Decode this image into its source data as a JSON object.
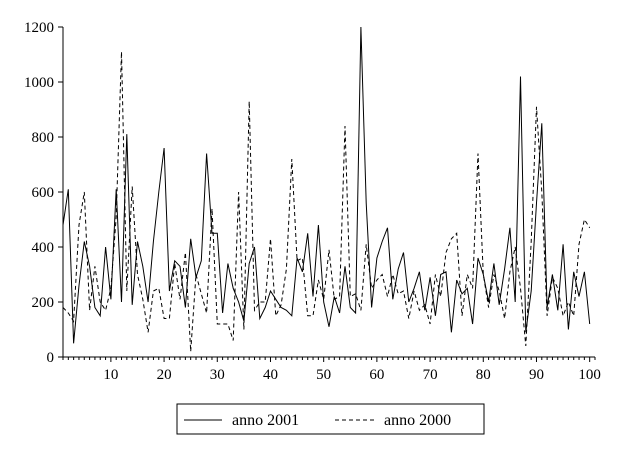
{
  "chart_data": {
    "type": "line",
    "title": "",
    "xlabel": "",
    "ylabel": "",
    "xlim": [
      1,
      101
    ],
    "ylim": [
      0,
      1200
    ],
    "x_ticks": [
      10,
      20,
      30,
      40,
      50,
      60,
      70,
      80,
      90,
      100
    ],
    "y_ticks": [
      0,
      200,
      400,
      600,
      800,
      1000,
      1200
    ],
    "x_tick_labels": [
      "10",
      "20",
      "30",
      "40",
      "50",
      "60",
      "70",
      "80",
      "90",
      "100"
    ],
    "y_tick_labels": [
      "0",
      "200",
      "400",
      "600",
      "800",
      "1000",
      "1200"
    ],
    "grid": false,
    "legend_position": "bottom",
    "series": [
      {
        "name": "anno 2001",
        "style": "solid",
        "color": "#000000",
        "x": [
          1,
          2,
          3,
          4,
          5,
          6,
          7,
          8,
          9,
          10,
          11,
          12,
          13,
          14,
          15,
          16,
          17,
          18,
          19,
          20,
          21,
          22,
          23,
          24,
          25,
          26,
          27,
          28,
          29,
          30,
          31,
          32,
          33,
          34,
          35,
          36,
          37,
          38,
          39,
          40,
          41,
          42,
          43,
          44,
          45,
          46,
          47,
          48,
          49,
          50,
          51,
          52,
          53,
          54,
          55,
          56,
          57,
          58,
          59,
          60,
          61,
          62,
          63,
          64,
          65,
          66,
          67,
          68,
          69,
          70,
          71,
          72,
          73,
          74,
          75,
          76,
          77,
          78,
          79,
          80,
          81,
          82,
          83,
          84,
          85,
          86,
          87,
          88,
          89,
          90,
          91,
          92,
          93,
          94,
          95,
          96,
          97,
          98,
          99,
          100
        ],
        "values": [
          480,
          610,
          50,
          260,
          420,
          330,
          180,
          150,
          400,
          210,
          610,
          200,
          810,
          190,
          420,
          330,
          200,
          420,
          600,
          760,
          240,
          350,
          330,
          180,
          430,
          290,
          350,
          740,
          450,
          450,
          160,
          340,
          250,
          200,
          130,
          340,
          400,
          140,
          180,
          240,
          210,
          180,
          170,
          150,
          360,
          310,
          450,
          220,
          480,
          200,
          110,
          220,
          160,
          330,
          180,
          160,
          1200,
          560,
          180,
          360,
          420,
          470,
          210,
          320,
          380,
          200,
          250,
          310,
          170,
          290,
          150,
          300,
          310,
          90,
          280,
          230,
          250,
          120,
          360,
          300,
          200,
          340,
          190,
          320,
          470,
          200,
          1020,
          90,
          240,
          560,
          850,
          180,
          300,
          170,
          410,
          100,
          310,
          220,
          310,
          120
        ]
      },
      {
        "name": "anno 2000",
        "style": "dashed",
        "color": "#000000",
        "x": [
          1,
          2,
          3,
          4,
          5,
          6,
          7,
          8,
          9,
          10,
          11,
          12,
          13,
          14,
          15,
          16,
          17,
          18,
          19,
          20,
          21,
          22,
          23,
          24,
          25,
          26,
          27,
          28,
          29,
          30,
          31,
          32,
          33,
          34,
          35,
          36,
          37,
          38,
          39,
          40,
          41,
          42,
          43,
          44,
          45,
          46,
          47,
          48,
          49,
          50,
          51,
          52,
          53,
          54,
          55,
          56,
          57,
          58,
          59,
          60,
          61,
          62,
          63,
          64,
          65,
          66,
          67,
          68,
          69,
          70,
          71,
          72,
          73,
          74,
          75,
          76,
          77,
          78,
          79,
          80,
          81,
          82,
          83,
          84,
          85,
          86,
          87,
          88,
          89,
          90,
          91,
          92,
          93,
          94,
          95,
          96,
          97,
          98,
          99,
          100
        ],
        "values": [
          180,
          160,
          130,
          480,
          600,
          170,
          330,
          200,
          170,
          250,
          510,
          1110,
          240,
          620,
          300,
          210,
          90,
          240,
          250,
          140,
          140,
          340,
          210,
          380,
          20,
          300,
          230,
          160,
          540,
          120,
          120,
          120,
          60,
          600,
          100,
          930,
          170,
          200,
          200,
          430,
          150,
          190,
          320,
          720,
          350,
          360,
          150,
          150,
          280,
          210,
          390,
          210,
          220,
          840,
          220,
          230,
          170,
          410,
          250,
          280,
          300,
          220,
          300,
          230,
          240,
          140,
          240,
          170,
          190,
          120,
          300,
          220,
          380,
          430,
          450,
          150,
          300,
          250,
          740,
          300,
          180,
          300,
          240,
          140,
          310,
          400,
          250,
          40,
          420,
          910,
          600,
          150,
          290,
          250,
          150,
          200,
          150,
          410,
          500,
          470
        ]
      }
    ]
  },
  "legend": {
    "items": [
      {
        "label": "anno 2001",
        "style": "solid"
      },
      {
        "label": "anno 2000",
        "style": "dashed"
      }
    ]
  }
}
